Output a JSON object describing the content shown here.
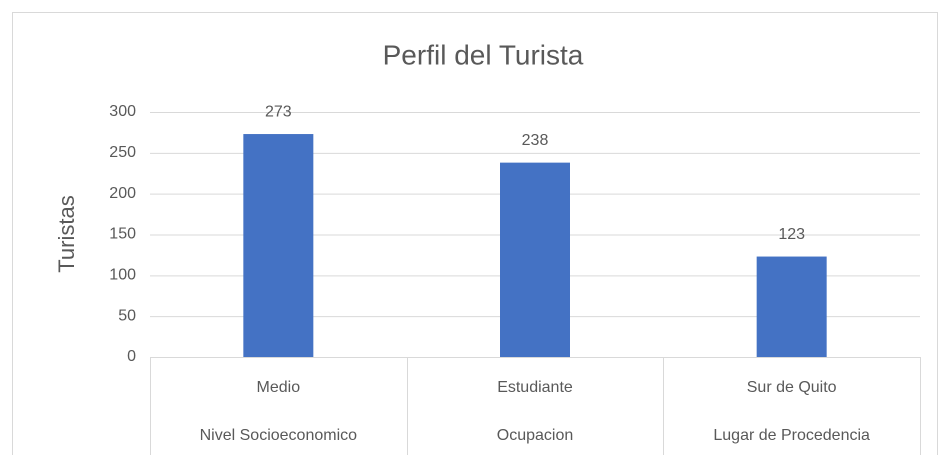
{
  "chart_data": {
    "type": "bar",
    "title": "Perfil del Turista",
    "y_label": "Turistas",
    "categories": [
      "Medio",
      "Estudiante",
      "Sur de Quito"
    ],
    "category_groups": [
      "Nivel Socioeconomico",
      "Ocupacion",
      "Lugar de Procedencia"
    ],
    "values": [
      273,
      238,
      123
    ],
    "color": "#4472c4",
    "ylim": [
      0,
      300
    ],
    "yticks": [
      0,
      50,
      100,
      150,
      200,
      250,
      300
    ],
    "grid": true,
    "data_labels": true
  }
}
